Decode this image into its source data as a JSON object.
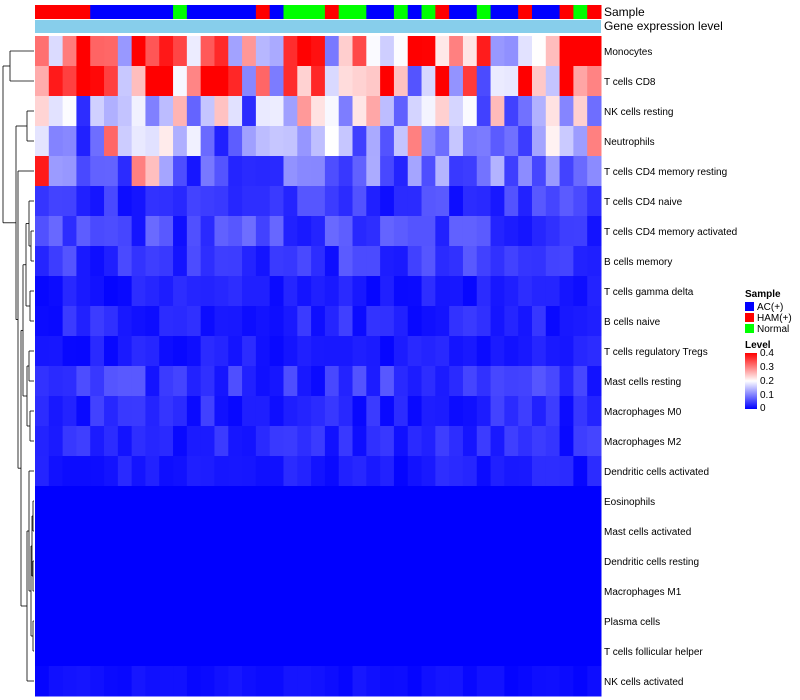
{
  "chart_data": {
    "type": "heatmap",
    "title": "",
    "annotation_labels": [
      "Sample",
      "Gene expression level"
    ],
    "sample_annotation": [
      "HAM(+)",
      "HAM(+)",
      "HAM(+)",
      "HAM(+)",
      "AC(+)",
      "AC(+)",
      "AC(+)",
      "AC(+)",
      "AC(+)",
      "AC(+)",
      "Normal",
      "AC(+)",
      "AC(+)",
      "AC(+)",
      "AC(+)",
      "AC(+)",
      "HAM(+)",
      "AC(+)",
      "Normal",
      "Normal",
      "Normal",
      "HAM(+)",
      "Normal",
      "Normal",
      "AC(+)",
      "AC(+)",
      "Normal",
      "AC(+)",
      "Normal",
      "HAM(+)",
      "AC(+)",
      "AC(+)",
      "Normal",
      "AC(+)",
      "AC(+)",
      "HAM(+)",
      "AC(+)",
      "AC(+)",
      "HAM(+)",
      "Normal",
      "HAM(+)"
    ],
    "sample_colors": {
      "AC(+)": "#0000ff",
      "HAM(+)": "#ff0000",
      "Normal": "#00ff00"
    },
    "expression_bar_color": "#87ceeb",
    "rows": [
      "Monocytes",
      "T cells CD8",
      "NK cells resting",
      "Neutrophils",
      "T cells CD4 memory resting",
      "T cells CD4 naive",
      "T cells CD4 memory activated",
      "B cells memory",
      "T cells gamma delta",
      "B cells naive",
      "T cells regulatory  Tregs",
      "Mast cells resting",
      "Macrophages M0",
      "Macrophages M2",
      "Dendritic cells activated",
      "Eosinophils",
      "Mast cells activated",
      "Dendritic cells resting",
      "Macrophages M1",
      "Plasma cells",
      "T cells follicular helper",
      "NK cells activated"
    ],
    "row_base_levels": [
      0.25,
      0.28,
      0.15,
      0.12,
      0.08,
      0.04,
      0.05,
      0.04,
      0.02,
      0.03,
      0.02,
      0.04,
      0.03,
      0.03,
      0.02,
      0.0,
      0.0,
      0.0,
      0.0,
      0.0,
      0.0,
      0.01
    ],
    "highlight_cells": [
      [
        0,
        38,
        0.4
      ],
      [
        0,
        39,
        0.4
      ],
      [
        0,
        12,
        0.33
      ],
      [
        0,
        30,
        0.3
      ],
      [
        1,
        1,
        0.38
      ],
      [
        1,
        3,
        0.4
      ],
      [
        1,
        13,
        0.4
      ],
      [
        1,
        29,
        0.4
      ],
      [
        1,
        35,
        0.4
      ],
      [
        1,
        2,
        0.35
      ],
      [
        1,
        5,
        0.35
      ],
      [
        2,
        19,
        0.28
      ],
      [
        3,
        5,
        0.32
      ],
      [
        3,
        27,
        0.3
      ],
      [
        3,
        40,
        0.3
      ],
      [
        4,
        0,
        0.38
      ],
      [
        4,
        7,
        0.3
      ],
      [
        4,
        8,
        0.25
      ]
    ],
    "level_legend": {
      "title": "Level",
      "min": 0,
      "max": 0.4,
      "ticks": [
        0.4,
        0.3,
        0.2,
        0.1,
        0
      ],
      "colors": {
        "low": "#0000ff",
        "mid": "#ffffff",
        "high": "#ff0000"
      }
    },
    "sample_legend": {
      "title": "Sample",
      "items": [
        "AC(+)",
        "HAM(+)",
        "Normal"
      ]
    }
  },
  "legend": {
    "sample_title": "Sample",
    "sample_items": [
      {
        "label": "AC(+)",
        "color": "#0000ff"
      },
      {
        "label": "HAM(+)",
        "color": "#ff0000"
      },
      {
        "label": "Normal",
        "color": "#00ff00"
      }
    ],
    "level_title": "Level",
    "level_ticks": [
      "0.4",
      "0.3",
      "0.2",
      "0.1",
      "0"
    ]
  }
}
